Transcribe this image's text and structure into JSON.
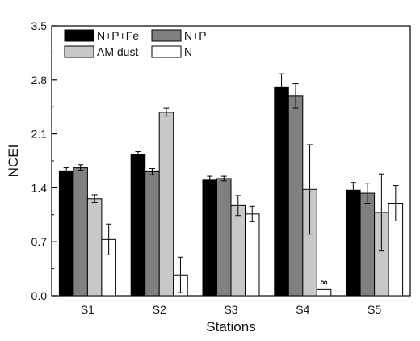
{
  "chart_data": {
    "type": "bar",
    "title": "",
    "xlabel": "Stations",
    "ylabel": "NCEI",
    "ylim": [
      0.0,
      3.5
    ],
    "yticks": [
      "0.0",
      "0.7",
      "1.4",
      "2.1",
      "2.8",
      "3.5"
    ],
    "grid": false,
    "legend_position": "top-left",
    "categories": [
      "S1",
      "S2",
      "S3",
      "S4",
      "S5"
    ],
    "series": [
      {
        "name": "N+P+Fe",
        "color": "#000000",
        "values": [
          1.61,
          1.83,
          1.5,
          2.7,
          1.37
        ],
        "errors": [
          0.05,
          0.04,
          0.05,
          0.18,
          0.1
        ]
      },
      {
        "name": "N+P",
        "color": "#808080",
        "values": [
          1.66,
          1.61,
          1.52,
          2.59,
          1.33
        ],
        "errors": [
          0.04,
          0.04,
          0.03,
          0.16,
          0.13
        ]
      },
      {
        "name": "AM dust",
        "color": "#c8c8c8",
        "values": [
          1.26,
          2.38,
          1.17,
          1.38,
          1.08
        ],
        "errors": [
          0.05,
          0.05,
          0.13,
          0.58,
          0.5
        ]
      },
      {
        "name": "N",
        "color": "#ffffff",
        "values": [
          0.73,
          0.27,
          1.06,
          0.08,
          1.2
        ],
        "errors": [
          0.2,
          0.23,
          0.1,
          0.0,
          0.23
        ]
      }
    ],
    "annotations": [
      {
        "category": "S4",
        "series": "N",
        "text": "∞"
      }
    ]
  }
}
